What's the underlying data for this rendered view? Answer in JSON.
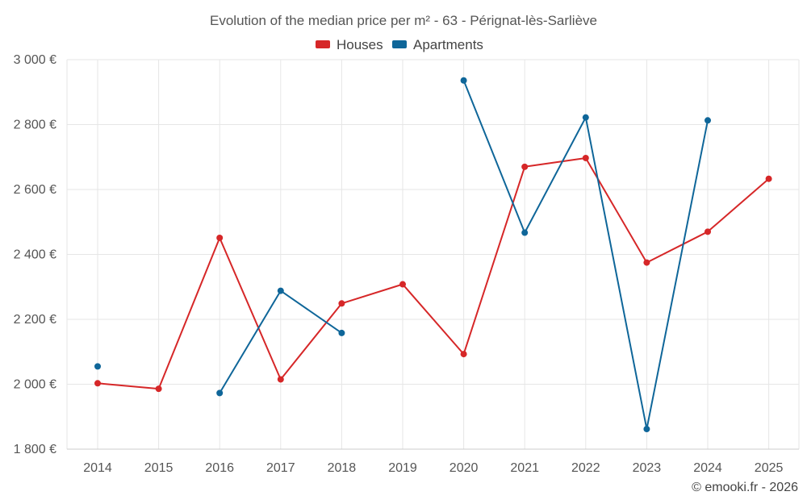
{
  "chart_data": {
    "type": "line",
    "title": "Evolution of the median price per m² - 63 - Pérignat-lès-Sarliève",
    "categories": [
      "2014",
      "2015",
      "2016",
      "2017",
      "2018",
      "2019",
      "2020",
      "2021",
      "2022",
      "2023",
      "2024",
      "2025"
    ],
    "series": [
      {
        "name": "Houses",
        "color": "#d62728",
        "values": [
          2003,
          1986,
          2451,
          2015,
          2249,
          2308,
          2093,
          2670,
          2697,
          2375,
          2470,
          2633
        ]
      },
      {
        "name": "Apartments",
        "color": "#0f6699",
        "values": [
          2055,
          null,
          1973,
          2288,
          2158,
          null,
          2936,
          2467,
          2822,
          1862,
          2813,
          null
        ]
      }
    ],
    "ylim": [
      1800,
      3000
    ],
    "yticks": [
      1800,
      2000,
      2200,
      2400,
      2600,
      2800,
      3000
    ],
    "ytick_labels": [
      "1 800 €",
      "2 000 €",
      "2 200 €",
      "2 400 €",
      "2 600 €",
      "2 800 €",
      "3 000 €"
    ],
    "xlabel": "",
    "ylabel": "",
    "grid": true,
    "legend_position": "top-center"
  },
  "credit": "© emooki.fr - 2026"
}
